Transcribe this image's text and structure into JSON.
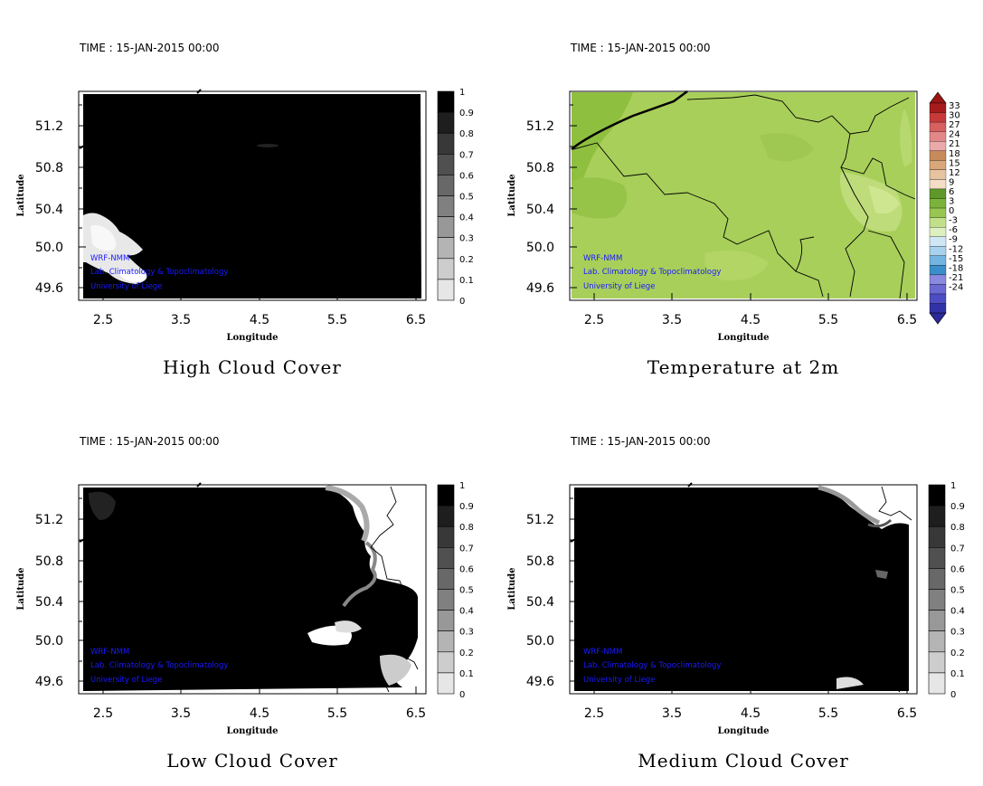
{
  "credits": [
    "WRF-NMM",
    "Lab. Climatology & Topoclimatology",
    "University of Liege"
  ],
  "panels": [
    {
      "id": "high-cloud",
      "time_label": "TIME : 15-JAN-2015 00:00",
      "title": "High Cloud Cover",
      "xlabel": "Longitude",
      "ylabel": "Latitude",
      "xticks": [
        "2.5",
        "3.5",
        "4.5",
        "5.5",
        "6.5"
      ],
      "yticks": [
        "51.2",
        "50.8",
        "50.4",
        "50.0",
        "49.6"
      ],
      "colorbar_labels": [
        "1",
        "0.9",
        "0.8",
        "0.7",
        "0.6",
        "0.5",
        "0.4",
        "0.3",
        "0.2",
        "0.1",
        "0"
      ]
    },
    {
      "id": "temperature",
      "time_label": "TIME : 15-JAN-2015 00:00",
      "title": "Temperature at 2m",
      "xlabel": "Longitude",
      "ylabel": "Latitude",
      "xticks": [
        "2.5",
        "3.5",
        "4.5",
        "5.5",
        "6.5"
      ],
      "yticks": [
        "51.2",
        "50.8",
        "50.4",
        "50.0",
        "49.6"
      ],
      "colorbar_labels": [
        "33",
        "30",
        "27",
        "24",
        "21",
        "18",
        "15",
        "12",
        "9",
        "6",
        "3",
        "0",
        "-3",
        "-6",
        "-9",
        "-12",
        "-15",
        "-18",
        "-21",
        "-24"
      ]
    },
    {
      "id": "low-cloud",
      "time_label": "TIME : 15-JAN-2015 00:00",
      "title": "Low Cloud Cover",
      "xlabel": "Longitude",
      "ylabel": "Latitude",
      "xticks": [
        "2.5",
        "3.5",
        "4.5",
        "5.5",
        "6.5"
      ],
      "yticks": [
        "51.2",
        "50.8",
        "50.4",
        "50.0",
        "49.6"
      ],
      "colorbar_labels": [
        "1",
        "0.9",
        "0.8",
        "0.7",
        "0.6",
        "0.5",
        "0.4",
        "0.3",
        "0.2",
        "0.1",
        "0"
      ]
    },
    {
      "id": "medium-cloud",
      "time_label": "TIME : 15-JAN-2015 00:00",
      "title": "Medium Cloud Cover",
      "xlabel": "Longitude",
      "ylabel": "Latitude",
      "xticks": [
        "2.5",
        "3.5",
        "4.5",
        "5.5",
        "6.5"
      ],
      "yticks": [
        "51.2",
        "50.8",
        "50.4",
        "50.0",
        "49.6"
      ],
      "colorbar_labels": [
        "1",
        "0.9",
        "0.8",
        "0.7",
        "0.6",
        "0.5",
        "0.4",
        "0.3",
        "0.2",
        "0.1",
        "0"
      ]
    }
  ],
  "colors": {
    "cloud_dark": "#000000",
    "temp_field": "#a8cf5a",
    "temp_field_dark": "#8fbf3f",
    "credit_text": "#1a1aff"
  }
}
